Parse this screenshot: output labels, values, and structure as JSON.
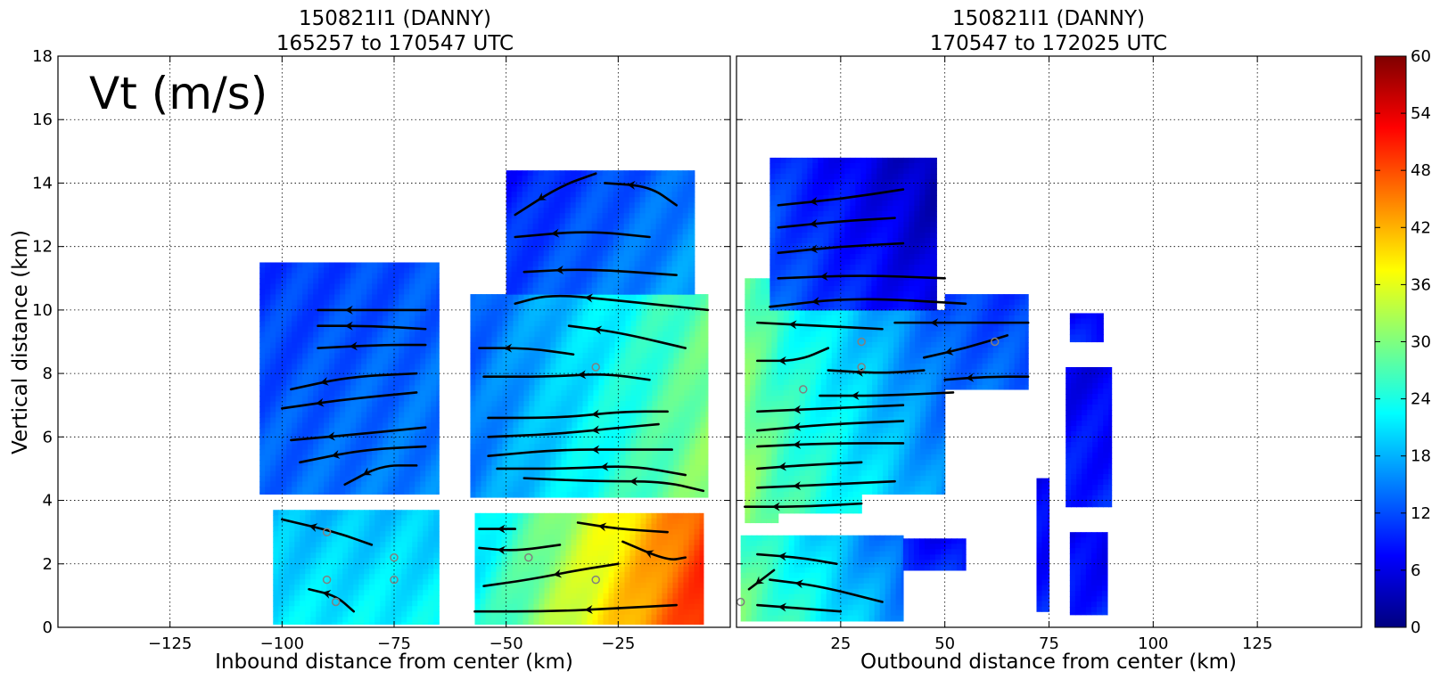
{
  "chart_data": [
    {
      "type": "heatmap",
      "panel": "left",
      "title_line1": "150821I1 (DANNY)",
      "title_line2": "165257 to 170547 UTC",
      "annotation": "Vt (m/s)",
      "xlabel": "Inbound distance from center (km)",
      "ylabel": "Vertical distance (km)",
      "xlim": [
        -150,
        0
      ],
      "ylim": [
        0,
        18
      ],
      "x_ticks": [
        {
          "value": -125,
          "label": "−125"
        },
        {
          "value": -100,
          "label": "−100"
        },
        {
          "value": -75,
          "label": "−75"
        },
        {
          "value": -50,
          "label": "−50"
        },
        {
          "value": -25,
          "label": "−25"
        }
      ],
      "y_ticks": [
        {
          "value": 0,
          "label": "0"
        },
        {
          "value": 2,
          "label": "2"
        },
        {
          "value": 4,
          "label": "4"
        },
        {
          "value": 6,
          "label": "6"
        },
        {
          "value": 8,
          "label": "8"
        },
        {
          "value": 10,
          "label": "10"
        },
        {
          "value": 12,
          "label": "12"
        },
        {
          "value": 14,
          "label": "14"
        },
        {
          "value": 16,
          "label": "16"
        },
        {
          "value": 18,
          "label": "18"
        }
      ],
      "grid": true,
      "regions": [
        {
          "x0": -105,
          "x1": -65,
          "y0": 4.2,
          "y1": 11.5,
          "v_left": 12,
          "v_right": 14
        },
        {
          "x0": -102,
          "x1": -65,
          "y0": 0.1,
          "y1": 3.7,
          "v_left": 20,
          "v_right": 21
        },
        {
          "x0": -58,
          "x1": -5,
          "y0": 4.1,
          "y1": 10.5,
          "v_left": 14,
          "v_right": 30
        },
        {
          "x0": -50,
          "x1": -8,
          "y0": 10.5,
          "y1": 14.4,
          "v_left": 10,
          "v_right": 16
        },
        {
          "x0": -57,
          "x1": -6,
          "y0": 0.1,
          "y1": 3.6,
          "v_left": 22,
          "v_right": 50
        }
      ],
      "streamlines": [
        [
          [
            -92,
            10.0
          ],
          [
            -80,
            10.0
          ],
          [
            -68,
            10.0
          ]
        ],
        [
          [
            -92,
            9.5
          ],
          [
            -80,
            9.5
          ],
          [
            -68,
            9.4
          ]
        ],
        [
          [
            -92,
            8.8
          ],
          [
            -78,
            8.9
          ],
          [
            -68,
            8.9
          ]
        ],
        [
          [
            -98,
            7.5
          ],
          [
            -85,
            7.9
          ],
          [
            -70,
            8.0
          ]
        ],
        [
          [
            -100,
            6.9
          ],
          [
            -85,
            7.2
          ],
          [
            -70,
            7.4
          ]
        ],
        [
          [
            -98,
            5.9
          ],
          [
            -82,
            6.1
          ],
          [
            -68,
            6.3
          ]
        ],
        [
          [
            -96,
            5.2
          ],
          [
            -82,
            5.6
          ],
          [
            -68,
            5.7
          ]
        ],
        [
          [
            -86,
            4.5
          ],
          [
            -78,
            5.1
          ],
          [
            -70,
            5.1
          ]
        ],
        [
          [
            -56,
            8.8
          ],
          [
            -45,
            8.8
          ],
          [
            -35,
            8.6
          ]
        ],
        [
          [
            -55,
            7.9
          ],
          [
            -40,
            7.9
          ],
          [
            -28,
            8.0
          ],
          [
            -18,
            7.8
          ]
        ],
        [
          [
            -54,
            6.6
          ],
          [
            -38,
            6.6
          ],
          [
            -24,
            6.8
          ],
          [
            -14,
            6.8
          ]
        ],
        [
          [
            -54,
            6.0
          ],
          [
            -38,
            6.1
          ],
          [
            -24,
            6.3
          ],
          [
            -16,
            6.4
          ]
        ],
        [
          [
            -54,
            5.4
          ],
          [
            -38,
            5.6
          ],
          [
            -24,
            5.6
          ],
          [
            -13,
            5.6
          ]
        ],
        [
          [
            -52,
            5.0
          ],
          [
            -36,
            5.0
          ],
          [
            -22,
            5.1
          ],
          [
            -10,
            4.8
          ]
        ],
        [
          [
            -46,
            4.7
          ],
          [
            -30,
            4.6
          ],
          [
            -15,
            4.6
          ],
          [
            -6,
            4.3
          ]
        ],
        [
          [
            -48,
            12.3
          ],
          [
            -32,
            12.5
          ],
          [
            -18,
            12.3
          ]
        ],
        [
          [
            -46,
            11.2
          ],
          [
            -32,
            11.3
          ],
          [
            -12,
            11.1
          ]
        ],
        [
          [
            -48,
            10.2
          ],
          [
            -40,
            10.5
          ],
          [
            -25,
            10.3
          ],
          [
            -5,
            10.0
          ]
        ],
        [
          [
            -36,
            9.5
          ],
          [
            -25,
            9.3
          ],
          [
            -10,
            8.8
          ]
        ],
        [
          [
            -48,
            13.0
          ],
          [
            -38,
            13.9
          ],
          [
            -30,
            14.3
          ]
        ],
        [
          [
            -28,
            14.0
          ],
          [
            -18,
            13.9
          ],
          [
            -12,
            13.3
          ]
        ],
        [
          [
            -56,
            3.1
          ],
          [
            -48,
            3.1
          ]
        ],
        [
          [
            -56,
            2.5
          ],
          [
            -48,
            2.4
          ],
          [
            -38,
            2.6
          ]
        ],
        [
          [
            -55,
            1.3
          ],
          [
            -45,
            1.5
          ],
          [
            -34,
            1.8
          ],
          [
            -25,
            2.0
          ]
        ],
        [
          [
            -57,
            0.5
          ],
          [
            -40,
            0.5
          ],
          [
            -25,
            0.6
          ],
          [
            -12,
            0.7
          ]
        ],
        [
          [
            -34,
            3.3
          ],
          [
            -25,
            3.1
          ],
          [
            -14,
            3.0
          ]
        ],
        [
          [
            -24,
            2.7
          ],
          [
            -14,
            2.1
          ],
          [
            -10,
            2.2
          ]
        ],
        [
          [
            -100,
            3.4
          ],
          [
            -88,
            3.0
          ],
          [
            -80,
            2.6
          ]
        ],
        [
          [
            -94,
            1.2
          ],
          [
            -88,
            1.0
          ],
          [
            -84,
            0.5
          ]
        ]
      ],
      "rings": [
        [
          -90,
          3.0
        ],
        [
          -75,
          2.2
        ],
        [
          -90,
          1.5
        ],
        [
          -75,
          1.5
        ],
        [
          -45,
          2.2
        ],
        [
          -30,
          1.5
        ],
        [
          -30,
          8.2
        ],
        [
          -88,
          0.8
        ]
      ]
    },
    {
      "type": "heatmap",
      "panel": "right",
      "title_line1": "150821I1 (DANNY)",
      "title_line2": "170547 to 172025 UTC",
      "xlabel": "Outbound distance from center (km)",
      "xlim": [
        0,
        150
      ],
      "ylim": [
        0,
        18
      ],
      "x_ticks": [
        {
          "value": 25,
          "label": "25"
        },
        {
          "value": 50,
          "label": "50"
        },
        {
          "value": 75,
          "label": "75"
        },
        {
          "value": 100,
          "label": "100"
        },
        {
          "value": 125,
          "label": "125"
        }
      ],
      "grid": true,
      "regions": [
        {
          "x0": 2,
          "x1": 10,
          "y0": 3.3,
          "y1": 11.0,
          "v_left": 30,
          "v_right": 26
        },
        {
          "x0": 10,
          "x1": 30,
          "y0": 3.6,
          "y1": 10.0,
          "v_left": 26,
          "v_right": 20
        },
        {
          "x0": 30,
          "x1": 50,
          "y0": 4.2,
          "y1": 10.0,
          "v_left": 20,
          "v_right": 14
        },
        {
          "x0": 50,
          "x1": 70,
          "y0": 7.5,
          "y1": 10.5,
          "v_left": 13,
          "v_right": 12
        },
        {
          "x0": 8,
          "x1": 48,
          "y0": 10.0,
          "y1": 14.8,
          "v_left": 12,
          "v_right": 4
        },
        {
          "x0": 1,
          "x1": 40,
          "y0": 0.2,
          "y1": 2.9,
          "v_left": 28,
          "v_right": 14
        },
        {
          "x0": 40,
          "x1": 55,
          "y0": 1.8,
          "y1": 2.8,
          "v_left": 10,
          "v_right": 8
        },
        {
          "x0": 72,
          "x1": 75,
          "y0": 0.5,
          "y1": 4.7,
          "v_left": 8,
          "v_right": 8
        },
        {
          "x0": 79,
          "x1": 90,
          "y0": 3.8,
          "y1": 8.2,
          "v_left": 8,
          "v_right": 8
        },
        {
          "x0": 80,
          "x1": 89,
          "y0": 0.4,
          "y1": 3.0,
          "v_left": 8,
          "v_right": 8
        },
        {
          "x0": 80,
          "x1": 88,
          "y0": 9.0,
          "y1": 9.9,
          "v_left": 8,
          "v_right": 8
        }
      ],
      "streamlines": [
        [
          [
            10,
            13.3
          ],
          [
            25,
            13.5
          ],
          [
            40,
            13.8
          ]
        ],
        [
          [
            10,
            12.6
          ],
          [
            25,
            12.8
          ],
          [
            38,
            12.9
          ]
        ],
        [
          [
            10,
            11.8
          ],
          [
            25,
            12.0
          ],
          [
            40,
            12.1
          ]
        ],
        [
          [
            10,
            11.0
          ],
          [
            30,
            11.1
          ],
          [
            50,
            11.0
          ]
        ],
        [
          [
            8,
            10.1
          ],
          [
            28,
            10.4
          ],
          [
            55,
            10.2
          ]
        ],
        [
          [
            5,
            9.6
          ],
          [
            20,
            9.5
          ],
          [
            35,
            9.4
          ]
        ],
        [
          [
            38,
            9.6
          ],
          [
            55,
            9.6
          ],
          [
            70,
            9.6
          ]
        ],
        [
          [
            5,
            8.4
          ],
          [
            15,
            8.4
          ],
          [
            22,
            8.8
          ]
        ],
        [
          [
            45,
            8.5
          ],
          [
            55,
            8.8
          ],
          [
            65,
            9.2
          ]
        ],
        [
          [
            22,
            8.1
          ],
          [
            35,
            8.0
          ],
          [
            45,
            8.1
          ]
        ],
        [
          [
            50,
            7.8
          ],
          [
            60,
            7.9
          ],
          [
            70,
            7.9
          ]
        ],
        [
          [
            20,
            7.3
          ],
          [
            35,
            7.3
          ],
          [
            52,
            7.4
          ]
        ],
        [
          [
            5,
            6.8
          ],
          [
            22,
            6.9
          ],
          [
            40,
            7.0
          ]
        ],
        [
          [
            5,
            6.2
          ],
          [
            22,
            6.4
          ],
          [
            40,
            6.5
          ]
        ],
        [
          [
            5,
            5.7
          ],
          [
            22,
            5.8
          ],
          [
            40,
            5.8
          ]
        ],
        [
          [
            5,
            5.0
          ],
          [
            15,
            5.1
          ],
          [
            30,
            5.2
          ]
        ],
        [
          [
            5,
            4.4
          ],
          [
            22,
            4.5
          ],
          [
            38,
            4.6
          ]
        ],
        [
          [
            2,
            3.8
          ],
          [
            15,
            3.8
          ],
          [
            30,
            3.9
          ]
        ],
        [
          [
            5,
            2.3
          ],
          [
            15,
            2.2
          ],
          [
            24,
            2.0
          ]
        ],
        [
          [
            8,
            1.5
          ],
          [
            20,
            1.3
          ],
          [
            35,
            0.8
          ]
        ],
        [
          [
            5,
            0.7
          ],
          [
            15,
            0.6
          ],
          [
            25,
            0.5
          ]
        ],
        [
          [
            3,
            1.2
          ],
          [
            6,
            1.5
          ],
          [
            9,
            1.8
          ]
        ]
      ],
      "rings": [
        [
          30,
          9.0
        ],
        [
          30,
          8.2
        ],
        [
          16,
          7.5
        ],
        [
          62,
          9.0
        ],
        [
          1,
          0.8
        ]
      ]
    }
  ],
  "colorbar": {
    "min": 0,
    "max": 60,
    "ticks": [
      {
        "value": 0,
        "label": "0"
      },
      {
        "value": 6,
        "label": "6"
      },
      {
        "value": 12,
        "label": "12"
      },
      {
        "value": 18,
        "label": "18"
      },
      {
        "value": 24,
        "label": "24"
      },
      {
        "value": 30,
        "label": "30"
      },
      {
        "value": 36,
        "label": "36"
      },
      {
        "value": 42,
        "label": "42"
      },
      {
        "value": 48,
        "label": "48"
      },
      {
        "value": 54,
        "label": "54"
      },
      {
        "value": 60,
        "label": "60"
      }
    ],
    "colors": [
      "#00007f",
      "#0000ff",
      "#007fff",
      "#00ffff",
      "#7fff7f",
      "#ffff00",
      "#ff7f00",
      "#ff0000",
      "#7f0000"
    ]
  }
}
